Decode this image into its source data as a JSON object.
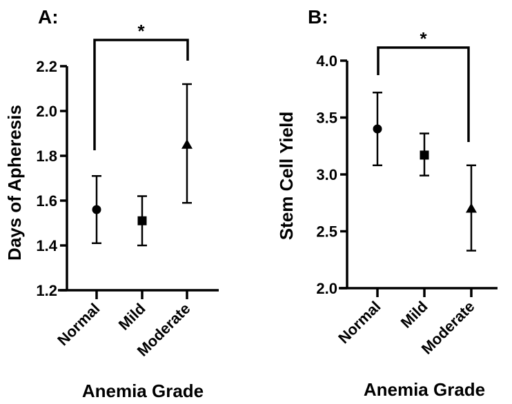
{
  "figure_title": "",
  "colors": {
    "foreground": "#000000",
    "background": "#ffffff"
  },
  "chart_data": [
    {
      "type": "scatter",
      "panel_label": "A:",
      "ylabel": "Days of Apheresis",
      "xlabel": "Anemia Grade",
      "categories": [
        "Normal",
        "Mild",
        "Moderate"
      ],
      "markers": [
        "circle",
        "square",
        "triangle"
      ],
      "series": [
        {
          "name": "mean with error bars",
          "means": [
            1.56,
            1.51,
            1.85
          ],
          "err_low": [
            1.41,
            1.4,
            1.59
          ],
          "err_high": [
            1.71,
            1.62,
            2.12
          ]
        }
      ],
      "ylim": [
        1.2,
        2.2
      ],
      "yticks": [
        1.2,
        1.4,
        1.6,
        1.8,
        2.0,
        2.2
      ],
      "grid": false,
      "legend": "none",
      "significance": {
        "from": "Normal",
        "to": "Moderate",
        "label": "*"
      }
    },
    {
      "type": "scatter",
      "panel_label": "B:",
      "ylabel": "Stem Cell Yield",
      "xlabel": "Anemia Grade",
      "categories": [
        "Normal",
        "Mild",
        "Moderate"
      ],
      "markers": [
        "circle",
        "square",
        "triangle"
      ],
      "series": [
        {
          "name": "mean with error bars",
          "means": [
            3.4,
            3.17,
            2.7
          ],
          "err_low": [
            3.08,
            2.99,
            2.33
          ],
          "err_high": [
            3.72,
            3.36,
            3.08
          ]
        }
      ],
      "ylim": [
        2.0,
        4.0
      ],
      "yticks": [
        2.0,
        2.5,
        3.0,
        3.5,
        4.0
      ],
      "grid": false,
      "legend": "none",
      "significance": {
        "from": "Normal",
        "to": "Moderate",
        "label": "*"
      }
    }
  ]
}
